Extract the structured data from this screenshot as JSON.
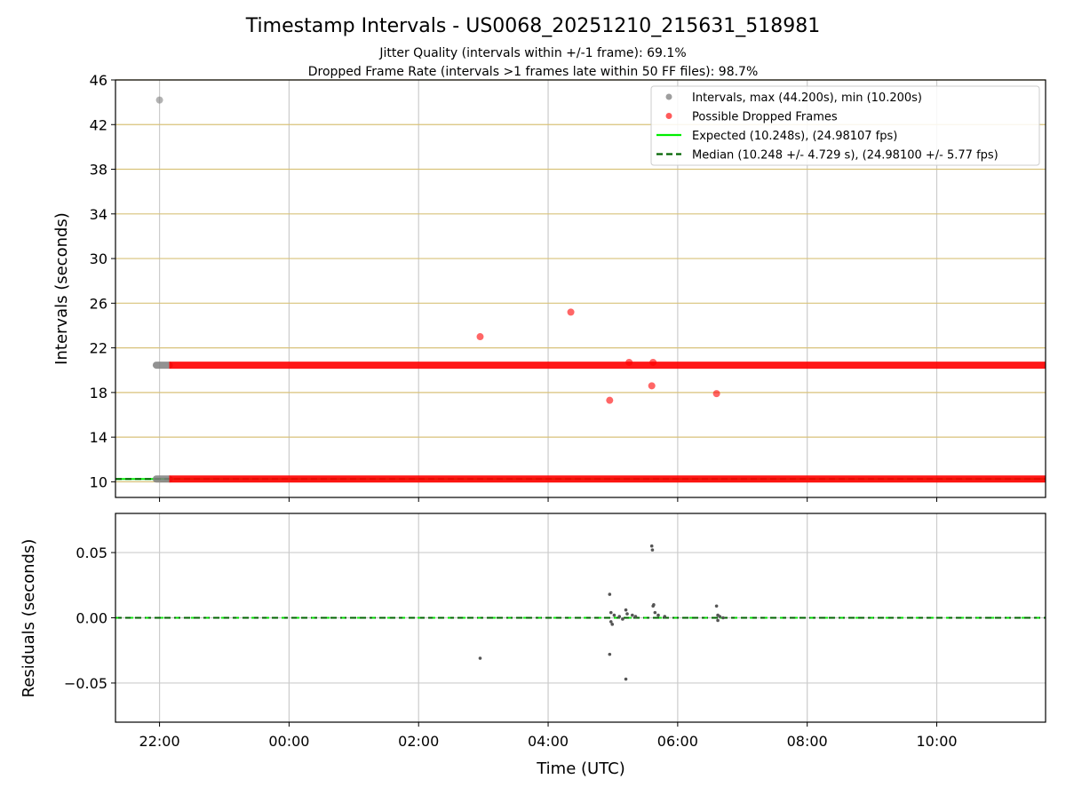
{
  "chart_data": {
    "title": "Timestamp Intervals - US0068_20251210_215631_518981",
    "subtitles": [
      "Jitter Quality (intervals within +/-1 frame): 69.1%",
      "Dropped Frame Rate (intervals >1 frames late within 50 FF files): 98.7%"
    ],
    "xlabel": "Time (UTC)",
    "xticks": [
      "22:00",
      "00:00",
      "02:00",
      "04:00",
      "06:00",
      "08:00",
      "10:00"
    ],
    "xlim_hours": [
      21.32,
      35.68
    ],
    "x_hour_of_first_tick": 22,
    "panels": [
      {
        "type": "scatter",
        "ylabel": "Intervals (seconds)",
        "ylim": [
          8.6,
          46
        ],
        "yticks": [
          "10",
          "14",
          "18",
          "22",
          "26",
          "30",
          "34",
          "38",
          "42",
          "46"
        ],
        "grid": "horizontal gold lines, vertical grey lines",
        "colors": {
          "intervals": "#808080",
          "dropped": "#ff0000",
          "expected": "#00ee00",
          "median": "#006400",
          "hgrid": "#d8c27a",
          "vgrid": "#cccccc"
        },
        "expected_interval": 10.248,
        "median_interval": 10.248,
        "intervals_outlier": [
          {
            "hour": 22.0,
            "value": 44.2
          }
        ],
        "intervals_grey_band": [
          {
            "hour_start": 21.95,
            "hour_end": 22.15,
            "value": 20.45
          },
          {
            "hour_start": 21.95,
            "hour_end": 22.15,
            "value": 10.25
          }
        ],
        "dropped_bands": [
          {
            "hour_start": 22.15,
            "hour_end": 35.68,
            "value": 20.45
          },
          {
            "hour_start": 22.15,
            "hour_end": 35.68,
            "value": 10.25
          }
        ],
        "dropped_points": [
          {
            "hour": 26.95,
            "value": 23.0
          },
          {
            "hour": 28.35,
            "value": 25.2
          },
          {
            "hour": 28.95,
            "value": 17.3
          },
          {
            "hour": 29.6,
            "value": 18.6
          },
          {
            "hour": 30.6,
            "value": 17.9
          },
          {
            "hour": 29.25,
            "value": 20.7
          },
          {
            "hour": 29.62,
            "value": 20.7
          }
        ],
        "legend": {
          "placement": "upper right",
          "entries": [
            {
              "label": "Intervals, max (44.200s), min (10.200s)",
              "marker": "dot",
              "color": "#9e9e9e"
            },
            {
              "label": "Possible Dropped Frames",
              "marker": "dot",
              "color": "#ff5a5a"
            },
            {
              "label": "Expected (10.248s), (24.98107 fps)",
              "marker": "line",
              "color": "#00ee00"
            },
            {
              "label": "Median (10.248 +/- 4.729 s), (24.98100 +/- 5.77 fps)",
              "marker": "dashed",
              "color": "#006400"
            }
          ]
        }
      },
      {
        "type": "scatter",
        "ylabel": "Residuals (seconds)",
        "ylim": [
          -0.08,
          0.08
        ],
        "yticks": [
          {
            "value": 0.05,
            "label": "0.05"
          },
          {
            "value": 0.0,
            "label": "0.00"
          },
          {
            "value": -0.05,
            "label": "−0.05"
          }
        ],
        "grid": "horizontal and vertical grey lines",
        "residual_points": [
          {
            "hour": 26.95,
            "value": -0.031
          },
          {
            "hour": 28.95,
            "value": 0.018
          },
          {
            "hour": 28.95,
            "value": -0.028
          },
          {
            "hour": 28.97,
            "value": 0.004
          },
          {
            "hour": 28.97,
            "value": -0.003
          },
          {
            "hour": 28.99,
            "value": -0.005
          },
          {
            "hour": 29.02,
            "value": 0.002
          },
          {
            "hour": 29.1,
            "value": 0.001
          },
          {
            "hour": 29.15,
            "value": -0.001
          },
          {
            "hour": 29.2,
            "value": 0.006
          },
          {
            "hour": 29.22,
            "value": 0.003
          },
          {
            "hour": 29.2,
            "value": -0.047
          },
          {
            "hour": 29.3,
            "value": 0.002
          },
          {
            "hour": 29.35,
            "value": 0.001
          },
          {
            "hour": 29.6,
            "value": 0.055
          },
          {
            "hour": 29.61,
            "value": 0.052
          },
          {
            "hour": 29.62,
            "value": 0.009
          },
          {
            "hour": 29.63,
            "value": 0.01
          },
          {
            "hour": 29.65,
            "value": 0.004
          },
          {
            "hour": 29.7,
            "value": 0.002
          },
          {
            "hour": 29.8,
            "value": 0.001
          },
          {
            "hour": 30.6,
            "value": 0.009
          },
          {
            "hour": 30.62,
            "value": 0.002
          },
          {
            "hour": 30.65,
            "value": 0.001
          },
          {
            "hour": 30.62,
            "value": -0.002
          },
          {
            "hour": 30.7,
            "value": 0.0
          }
        ]
      }
    ]
  }
}
